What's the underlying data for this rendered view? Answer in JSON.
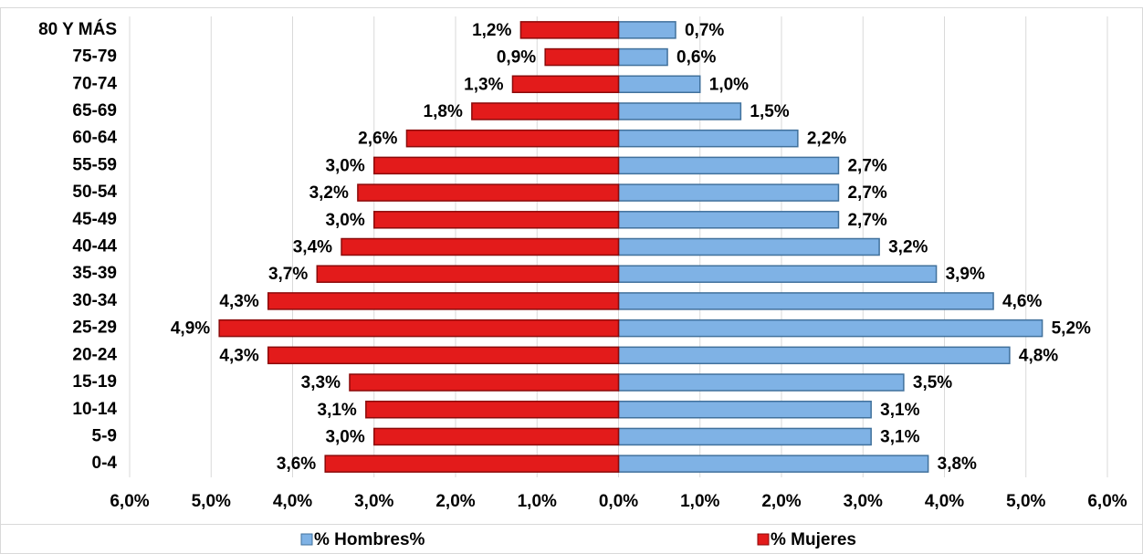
{
  "chart_data": {
    "type": "pyramid",
    "categories": [
      "0-4",
      "5-9",
      "10-14",
      "15-19",
      "20-24",
      "25-29",
      "30-34",
      "35-39",
      "40-44",
      "45-49",
      "50-54",
      "55-59",
      "60-64",
      "65-69",
      "70-74",
      "75-79",
      "80 Y MÁS"
    ],
    "series": [
      {
        "name": "% Hombres%",
        "color": "#7fb2e5",
        "side": "right",
        "values": [
          3.8,
          3.1,
          3.1,
          3.5,
          4.8,
          5.2,
          4.6,
          3.9,
          3.2,
          2.7,
          2.7,
          2.7,
          2.2,
          1.5,
          1.0,
          0.6,
          0.7
        ],
        "value_labels": [
          "3,8%",
          "3,1%",
          "3,1%",
          "3,5%",
          "4,8%",
          "5,2%",
          "4,6%",
          "3,9%",
          "3,2%",
          "2,7%",
          "2,7%",
          "2,7%",
          "2,2%",
          "1,5%",
          "1,0%",
          "0,6%",
          "0,7%"
        ]
      },
      {
        "name": "% Mujeres",
        "color": "#e31b1b",
        "side": "left",
        "values": [
          3.6,
          3.0,
          3.1,
          3.3,
          4.3,
          4.9,
          4.3,
          3.7,
          3.4,
          3.0,
          3.2,
          3.0,
          2.6,
          1.8,
          1.3,
          0.9,
          1.2
        ],
        "value_labels": [
          "3,6%",
          "3,0%",
          "3,1%",
          "3,3%",
          "4,3%",
          "4,9%",
          "4,3%",
          "3,7%",
          "3,4%",
          "3,0%",
          "3,2%",
          "3,0%",
          "2,6%",
          "1,8%",
          "1,3%",
          "0,9%",
          "1,2%"
        ]
      }
    ],
    "xlim": [
      -6,
      6
    ],
    "xticks": [
      {
        "value": -6,
        "label": "6,0%"
      },
      {
        "value": -5,
        "label": "5,0%"
      },
      {
        "value": -4,
        "label": "4,0%"
      },
      {
        "value": -3,
        "label": "3,0%"
      },
      {
        "value": -2,
        "label": "2,0%"
      },
      {
        "value": -1,
        "label": "1,0%"
      },
      {
        "value": 0,
        "label": "0,0%"
      },
      {
        "value": 1,
        "label": "1,0%"
      },
      {
        "value": 2,
        "label": "2,0%"
      },
      {
        "value": 3,
        "label": "3,0%"
      },
      {
        "value": 4,
        "label": "4,0%"
      },
      {
        "value": 5,
        "label": "5,0%"
      },
      {
        "value": 6,
        "label": "6,0%"
      }
    ],
    "grid": true,
    "legend": "bottom"
  }
}
